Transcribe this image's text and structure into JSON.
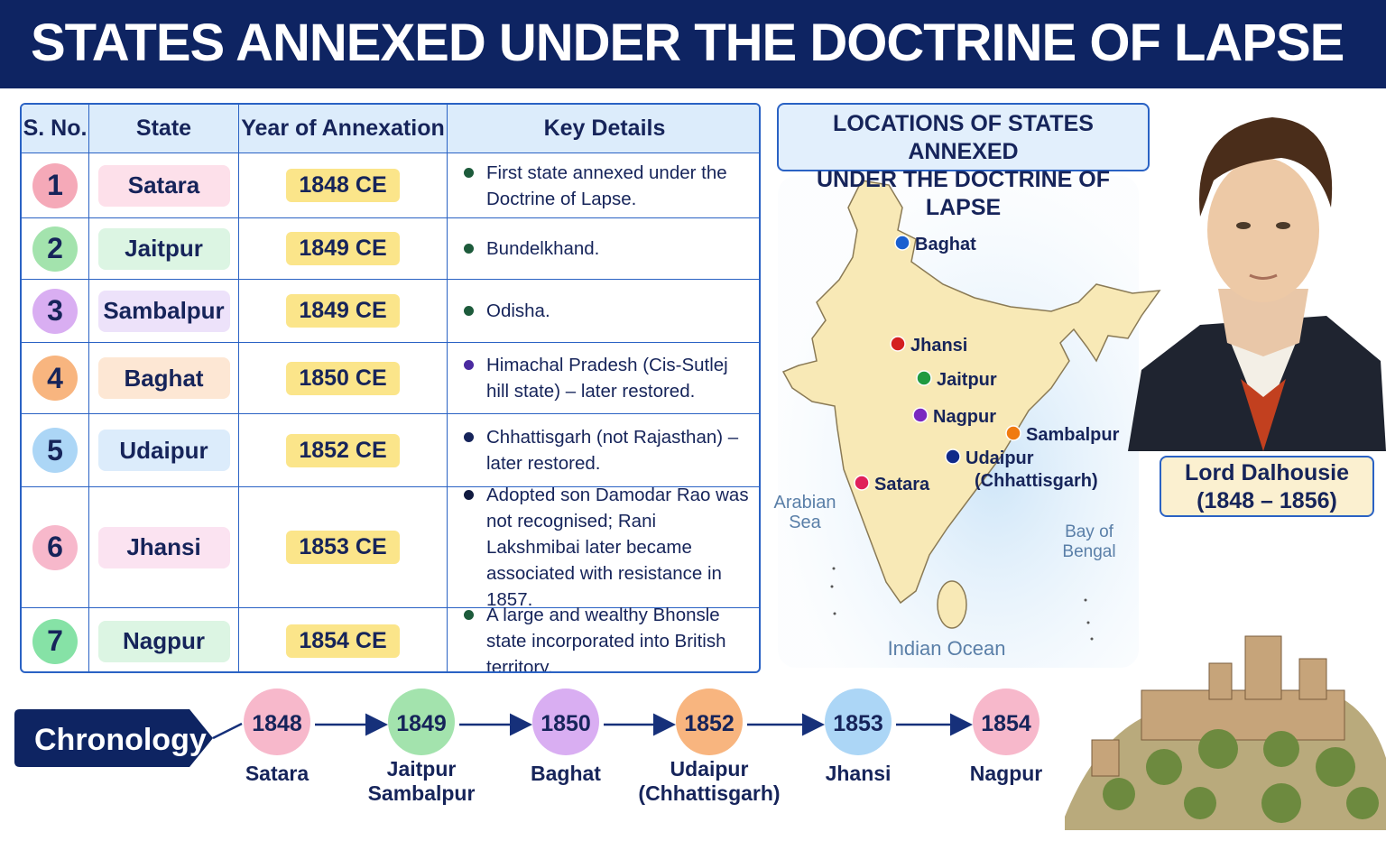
{
  "header": {
    "title": "STATES ANNEXED UNDER THE DOCTRINE OF LAPSE"
  },
  "table": {
    "headers": [
      "S. No.",
      "State",
      "Year of Annexation",
      "Key Details"
    ],
    "rows": [
      [
        "1",
        "Satara",
        "1848 CE",
        "First state annexed under the Doctrine of Lapse."
      ],
      [
        "2",
        "Jaitpur",
        "1849 CE",
        "Bundelkhand."
      ],
      [
        "3",
        "Sambalpur",
        "1849 CE",
        "Odisha."
      ],
      [
        "4",
        "Baghat",
        "1850 CE",
        "Himachal Pradesh (Cis-Sutlej hill state) – later restored."
      ],
      [
        "5",
        "Udaipur",
        "1852 CE",
        "Chhattisgarh (not Rajasthan) – later restored."
      ],
      [
        "6",
        "Jhansi",
        "1853 CE",
        "Adopted son Damodar Rao was not recognised; Rani Lakshmibai later became associated with resistance in 1857."
      ],
      [
        "7",
        "Nagpur",
        "1854 CE",
        "A large and wealthy Bhonsle state incorporated into British territory."
      ]
    ]
  },
  "map": {
    "title": [
      "LOCATIONS OF STATES ANNEXED",
      "UNDER THE DOCTRINE OF LAPSE"
    ],
    "places": [
      [
        "Baghat"
      ],
      [
        "Jhansi"
      ],
      [
        "Jaitpur"
      ],
      [
        "Nagpur"
      ],
      [
        "Sambalpur"
      ],
      [
        "Udaipur",
        "(Chhattisgarh)"
      ],
      [
        "Satara"
      ]
    ],
    "seas": [
      [
        "Arabian",
        "Sea"
      ],
      [
        "Bay of",
        "Bengal"
      ],
      [
        "Indian Ocean"
      ]
    ]
  },
  "portrait": {
    "name": "Lord Dalhousie",
    "years": "(1848 – 1856)"
  },
  "chronology": {
    "label": "Chronology",
    "items": [
      {
        "year": "1848",
        "states": [
          "Satara"
        ]
      },
      {
        "year": "1849",
        "states": [
          "Jaitpur",
          "Sambalpur"
        ]
      },
      {
        "year": "1850",
        "states": [
          "Baghat"
        ]
      },
      {
        "year": "1852",
        "states": [
          "Udaipur",
          "(Chhattisgarh)"
        ]
      },
      {
        "year": "1853",
        "states": [
          "Jhansi"
        ]
      },
      {
        "year": "1854",
        "states": [
          "Nagpur"
        ]
      }
    ]
  }
}
